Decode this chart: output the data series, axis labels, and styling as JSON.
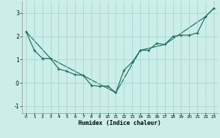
{
  "xlabel": "Humidex (Indice chaleur)",
  "background_color": "#cceee8",
  "grid_color": "#aad8d2",
  "line_color": "#1a6e64",
  "line1_x": [
    0,
    1,
    2,
    3,
    4,
    5,
    6,
    7,
    8,
    9,
    10,
    11,
    12,
    13,
    14,
    15,
    16,
    17,
    18,
    19,
    20,
    21,
    22,
    23
  ],
  "line1_y": [
    2.2,
    1.4,
    1.05,
    1.05,
    0.6,
    0.5,
    0.35,
    0.32,
    -0.1,
    -0.15,
    -0.13,
    -0.42,
    0.55,
    0.88,
    1.4,
    1.4,
    1.7,
    1.65,
    2.0,
    2.05,
    2.05,
    2.15,
    2.85,
    3.2
  ],
  "line2_x": [
    0,
    3,
    11,
    14,
    17,
    22,
    23
  ],
  "line2_y": [
    2.2,
    1.05,
    -0.42,
    1.4,
    1.65,
    2.85,
    3.2
  ],
  "ylim": [
    -1.3,
    3.5
  ],
  "xlim": [
    -0.5,
    23.5
  ],
  "yticks": [
    -1,
    0,
    1,
    2,
    3
  ],
  "xticks": [
    0,
    1,
    2,
    3,
    4,
    5,
    6,
    7,
    8,
    9,
    10,
    11,
    12,
    13,
    14,
    15,
    16,
    17,
    18,
    19,
    20,
    21,
    22,
    23
  ]
}
